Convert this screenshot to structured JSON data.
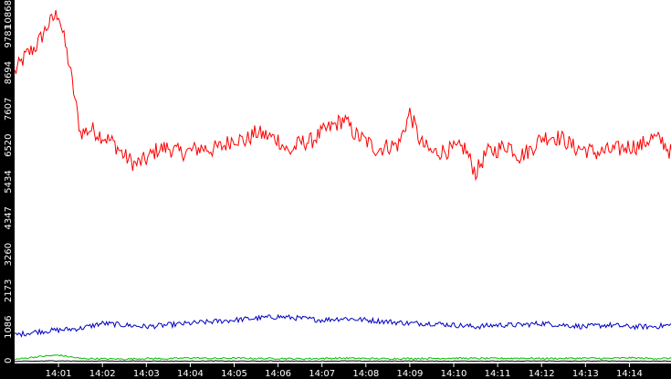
{
  "chart_data": {
    "type": "line",
    "title": "",
    "xlabel": "",
    "ylabel": "",
    "ylim": [
      0,
      10868
    ],
    "xlim": [
      "14:00:00",
      "14:15:00"
    ],
    "y_tick_labels": [
      "0",
      "1086",
      "2173",
      "3260",
      "4347",
      "5434",
      "6520",
      "7607",
      "8694",
      "9781",
      "10868"
    ],
    "y_tick_values": [
      0,
      1086,
      2173,
      3260,
      4347,
      5434,
      6520,
      7607,
      8694,
      9781,
      10868
    ],
    "x_tick_labels": [
      "14:01",
      "14:02",
      "14:03",
      "14:04",
      "14:05",
      "14:06",
      "14:07",
      "14:08",
      "14:09",
      "14:10",
      "14:11",
      "14:12",
      "14:13",
      "14:14"
    ],
    "grid": false,
    "legend": "none",
    "colors": {
      "background": "#000000",
      "plot_background": "#ffffff",
      "axis_text": "#ffffff",
      "series_red": "#ff0000",
      "series_blue": "#0000c0",
      "series_green": "#00c000",
      "series_black": "#000000"
    },
    "series": [
      {
        "color": "#ff0000",
        "x": [
          "14:00:00",
          "14:00:15",
          "14:00:30",
          "14:00:45",
          "14:01:00",
          "14:01:15",
          "14:01:30",
          "14:01:45",
          "14:02:00",
          "14:02:15",
          "14:02:30",
          "14:02:45",
          "14:03:00",
          "14:03:15",
          "14:03:30",
          "14:03:45",
          "14:04:00",
          "14:04:15",
          "14:04:30",
          "14:04:45",
          "14:05:00",
          "14:05:15",
          "14:05:30",
          "14:05:45",
          "14:06:00",
          "14:06:15",
          "14:06:30",
          "14:06:45",
          "14:07:00",
          "14:07:15",
          "14:07:30",
          "14:07:45",
          "14:08:00",
          "14:08:15",
          "14:08:30",
          "14:08:45",
          "14:09:00",
          "14:09:15",
          "14:09:30",
          "14:09:45",
          "14:10:00",
          "14:10:15",
          "14:10:30",
          "14:10:45",
          "14:11:00",
          "14:11:15",
          "14:11:30",
          "14:11:45",
          "14:12:00",
          "14:12:15",
          "14:12:30",
          "14:12:45",
          "14:13:00",
          "14:13:15",
          "14:13:30",
          "14:13:45",
          "14:14:00",
          "14:14:15",
          "14:14:30",
          "14:14:45",
          "14:15:00"
        ],
        "values": [
          8700,
          9200,
          9500,
          10100,
          10500,
          8900,
          6900,
          7000,
          6800,
          6600,
          6200,
          5950,
          6100,
          6400,
          6450,
          6300,
          6350,
          6450,
          6400,
          6500,
          6750,
          6650,
          6900,
          6800,
          6700,
          6300,
          6600,
          6650,
          6900,
          7100,
          7300,
          6850,
          6650,
          6400,
          6500,
          6550,
          7500,
          6600,
          6300,
          6350,
          6400,
          6450,
          5700,
          6300,
          6400,
          6550,
          6200,
          6400,
          6750,
          6800,
          6700,
          6450,
          6400,
          6300,
          6350,
          6400,
          6500,
          6500,
          6750,
          6650,
          6200
        ]
      },
      {
        "color": "#0000c0",
        "x": [
          "14:00:00",
          "14:00:30",
          "14:01:00",
          "14:01:30",
          "14:02:00",
          "14:02:30",
          "14:03:00",
          "14:03:30",
          "14:04:00",
          "14:04:30",
          "14:05:00",
          "14:05:30",
          "14:06:00",
          "14:06:30",
          "14:07:00",
          "14:07:30",
          "14:08:00",
          "14:08:30",
          "14:09:00",
          "14:09:30",
          "14:10:00",
          "14:10:30",
          "14:11:00",
          "14:11:30",
          "14:12:00",
          "14:12:30",
          "14:13:00",
          "14:13:30",
          "14:14:00",
          "14:14:30",
          "14:15:00"
        ],
        "values": [
          850,
          950,
          1000,
          1050,
          1200,
          1150,
          1100,
          1150,
          1200,
          1250,
          1300,
          1350,
          1400,
          1350,
          1300,
          1350,
          1300,
          1250,
          1200,
          1200,
          1150,
          1100,
          1150,
          1150,
          1200,
          1150,
          1100,
          1150,
          1100,
          1100,
          1150
        ]
      },
      {
        "color": "#00c000",
        "x": [
          "14:00:00",
          "14:00:30",
          "14:01:00",
          "14:01:30",
          "14:02:00",
          "14:02:30",
          "14:03:00",
          "14:03:30",
          "14:04:00",
          "14:04:30",
          "14:05:00",
          "14:05:30",
          "14:06:00",
          "14:06:30",
          "14:07:00",
          "14:07:30",
          "14:08:00",
          "14:08:30",
          "14:09:00",
          "14:09:30",
          "14:10:00",
          "14:10:30",
          "14:11:00",
          "14:11:30",
          "14:12:00",
          "14:12:30",
          "14:13:00",
          "14:13:30",
          "14:14:00",
          "14:14:30",
          "14:15:00"
        ],
        "values": [
          120,
          200,
          250,
          150,
          140,
          130,
          150,
          140,
          170,
          150,
          160,
          150,
          150,
          140,
          150,
          160,
          150,
          140,
          150,
          150,
          160,
          150,
          150,
          160,
          150,
          150,
          160,
          150,
          170,
          150,
          150
        ]
      },
      {
        "color": "#000000",
        "x": [
          "14:00:00",
          "14:00:30",
          "14:01:00",
          "14:01:30",
          "14:02:00",
          "14:02:30",
          "14:03:00",
          "14:03:30",
          "14:04:00",
          "14:04:30",
          "14:05:00",
          "14:05:30",
          "14:06:00",
          "14:06:30",
          "14:07:00",
          "14:07:30",
          "14:08:00",
          "14:08:30",
          "14:09:00",
          "14:09:30",
          "14:10:00",
          "14:10:30",
          "14:11:00",
          "14:11:30",
          "14:12:00",
          "14:12:30",
          "14:13:00",
          "14:13:30",
          "14:14:00",
          "14:14:30",
          "14:15:00"
        ],
        "values": [
          60,
          70,
          80,
          70,
          75,
          70,
          75,
          70,
          70,
          75,
          70,
          70,
          75,
          70,
          70,
          75,
          70,
          70,
          75,
          70,
          70,
          75,
          70,
          70,
          75,
          70,
          70,
          75,
          70,
          70,
          70
        ]
      }
    ]
  }
}
